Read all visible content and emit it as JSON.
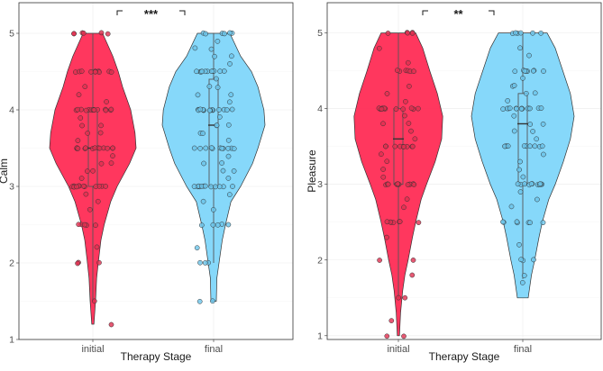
{
  "colors": {
    "initial_fill": "#FF2C55",
    "final_fill": "#7FD6FA",
    "initial_point": "#E03050",
    "final_point": "#6CC4EA",
    "panel_border": "#333333",
    "grid": "#EBEBEB"
  },
  "chart_data": [
    {
      "type": "violin",
      "title": "",
      "xlabel": "Therapy Stage",
      "ylabel": "Calm",
      "categories": [
        "initial",
        "final"
      ],
      "ylim": [
        1,
        5.4
      ],
      "yticks": [
        1,
        2,
        3,
        4,
        5
      ],
      "significance": "***",
      "series": [
        {
          "name": "initial",
          "min": 1.2,
          "q1": 3.0,
          "median": 3.5,
          "q3": 4.0,
          "max": 5.0,
          "whisker_low": 1.5,
          "density": [
            [
              1.2,
              0.02
            ],
            [
              1.5,
              0.05
            ],
            [
              1.8,
              0.07
            ],
            [
              2.0,
              0.1
            ],
            [
              2.3,
              0.15
            ],
            [
              2.5,
              0.21
            ],
            [
              2.8,
              0.33
            ],
            [
              3.0,
              0.45
            ],
            [
              3.3,
              0.68
            ],
            [
              3.5,
              0.8
            ],
            [
              3.7,
              0.78
            ],
            [
              4.0,
              0.7
            ],
            [
              4.3,
              0.55
            ],
            [
              4.5,
              0.47
            ],
            [
              4.7,
              0.37
            ],
            [
              5.0,
              0.18
            ]
          ],
          "points": [
            5,
            5,
            5,
            5,
            5,
            5,
            4.5,
            4.5,
            4.5,
            4.5,
            4.5,
            4.5,
            4.5,
            4.5,
            4.5,
            4.5,
            4.5,
            4.3,
            4.2,
            4.1,
            4,
            4,
            4,
            4,
            4,
            4,
            4,
            4,
            4,
            4,
            4,
            4,
            4,
            4,
            3.9,
            3.8,
            3.8,
            3.7,
            3.7,
            3.6,
            3.5,
            3.5,
            3.5,
            3.5,
            3.5,
            3.5,
            3.5,
            3.5,
            3.5,
            3.5,
            3.5,
            3.5,
            3.5,
            3.4,
            3.3,
            3.3,
            3.2,
            3.2,
            3.1,
            3,
            3,
            3,
            3,
            3,
            3,
            3,
            3,
            3,
            3,
            3,
            3,
            2.9,
            2.8,
            2.7,
            2.5,
            2.5,
            2.5,
            2.5,
            2.5,
            2.2,
            2,
            2,
            2,
            1.5,
            1.2
          ]
        },
        {
          "name": "final",
          "min": 1.5,
          "q1": 3.0,
          "median": 3.8,
          "q3": 4.4,
          "max": 5.0,
          "whisker_low": 2.0,
          "density": [
            [
              1.5,
              0.05
            ],
            [
              1.8,
              0.06
            ],
            [
              2.0,
              0.1
            ],
            [
              2.3,
              0.16
            ],
            [
              2.5,
              0.22
            ],
            [
              2.8,
              0.32
            ],
            [
              3.0,
              0.5
            ],
            [
              3.3,
              0.72
            ],
            [
              3.5,
              0.82
            ],
            [
              3.8,
              0.95
            ],
            [
              4.0,
              0.93
            ],
            [
              4.3,
              0.82
            ],
            [
              4.5,
              0.7
            ],
            [
              4.7,
              0.5
            ],
            [
              5.0,
              0.3
            ]
          ],
          "points": [
            5,
            5,
            5,
            5,
            5,
            5,
            4.9,
            4.8,
            4.8,
            4.7,
            4.7,
            4.6,
            4.5,
            4.5,
            4.5,
            4.5,
            4.5,
            4.5,
            4.5,
            4.5,
            4.5,
            4.5,
            4.5,
            4.4,
            4.3,
            4.3,
            4.2,
            4.2,
            4.1,
            4,
            4,
            4,
            4,
            4,
            4,
            4,
            4,
            4,
            4,
            4,
            4,
            4,
            4,
            3.9,
            3.8,
            3.8,
            3.8,
            3.7,
            3.7,
            3.6,
            3.5,
            3.5,
            3.5,
            3.5,
            3.5,
            3.5,
            3.5,
            3.5,
            3.5,
            3.5,
            3.5,
            3.4,
            3.3,
            3.3,
            3.2,
            3.2,
            3.1,
            3,
            3,
            3,
            3,
            3,
            3,
            3,
            3,
            3,
            3,
            3,
            3,
            2.9,
            2.8,
            2.7,
            2.5,
            2.5,
            2.5,
            2.5,
            2.5,
            2.2,
            2,
            2,
            2,
            1.5,
            1.5
          ]
        }
      ]
    },
    {
      "type": "violin",
      "title": "",
      "xlabel": "Therapy Stage",
      "ylabel": "Pleasure",
      "categories": [
        "initial",
        "final"
      ],
      "ylim": [
        0.95,
        5.4
      ],
      "yticks": [
        1,
        2,
        3,
        4,
        5
      ],
      "significance": "**",
      "series": [
        {
          "name": "initial",
          "min": 1.0,
          "q1": 3.0,
          "median": 3.6,
          "q3": 4.0,
          "max": 5.0,
          "whisker_low": 1.5,
          "density": [
            [
              1.0,
              0.02
            ],
            [
              1.3,
              0.04
            ],
            [
              1.6,
              0.08
            ],
            [
              1.8,
              0.12
            ],
            [
              2.0,
              0.18
            ],
            [
              2.3,
              0.26
            ],
            [
              2.5,
              0.32
            ],
            [
              2.8,
              0.42
            ],
            [
              3.0,
              0.52
            ],
            [
              3.3,
              0.68
            ],
            [
              3.6,
              0.8
            ],
            [
              3.9,
              0.82
            ],
            [
              4.2,
              0.72
            ],
            [
              4.5,
              0.58
            ],
            [
              4.8,
              0.45
            ],
            [
              5.0,
              0.32
            ]
          ],
          "points": [
            5,
            5,
            5,
            5,
            5,
            4.8,
            4.6,
            4.5,
            4.5,
            4.5,
            4.5,
            4.5,
            4.5,
            4.3,
            4.2,
            4.1,
            4,
            4,
            4,
            4,
            4,
            4,
            4,
            4,
            4,
            4,
            4,
            4,
            4,
            3.9,
            3.8,
            3.8,
            3.7,
            3.6,
            3.5,
            3.5,
            3.5,
            3.5,
            3.5,
            3.5,
            3.5,
            3.5,
            3.5,
            3.4,
            3.3,
            3.2,
            3.1,
            3,
            3,
            3,
            3,
            3,
            3,
            3,
            3,
            3,
            3,
            3,
            3,
            2.8,
            2.7,
            2.5,
            2.5,
            2.5,
            2.5,
            2.5,
            2.5,
            2.5,
            2.3,
            2,
            2,
            1.8,
            1.5,
            1.5,
            1.2,
            1,
            1
          ]
        },
        {
          "name": "final",
          "min": 1.5,
          "q1": 3.0,
          "median": 3.8,
          "q3": 4.2,
          "max": 5.0,
          "whisker_low": 1.75,
          "density": [
            [
              1.5,
              0.1
            ],
            [
              1.8,
              0.16
            ],
            [
              2.0,
              0.22
            ],
            [
              2.3,
              0.3
            ],
            [
              2.5,
              0.36
            ],
            [
              2.8,
              0.48
            ],
            [
              3.0,
              0.6
            ],
            [
              3.3,
              0.75
            ],
            [
              3.6,
              0.88
            ],
            [
              3.9,
              0.95
            ],
            [
              4.2,
              0.88
            ],
            [
              4.5,
              0.74
            ],
            [
              4.8,
              0.6
            ],
            [
              5.0,
              0.45
            ]
          ],
          "points": [
            5,
            5,
            5,
            5,
            5,
            5,
            4.8,
            4.7,
            4.5,
            4.5,
            4.5,
            4.5,
            4.5,
            4.5,
            4.5,
            4.5,
            4.4,
            4.3,
            4.3,
            4.2,
            4.2,
            4.1,
            4,
            4,
            4,
            4,
            4,
            4,
            4,
            4,
            4,
            4,
            4,
            4,
            4,
            4,
            3.9,
            3.8,
            3.8,
            3.7,
            3.7,
            3.6,
            3.5,
            3.5,
            3.5,
            3.5,
            3.5,
            3.5,
            3.5,
            3.5,
            3.5,
            3.5,
            3.4,
            3.3,
            3.2,
            3.1,
            3,
            3,
            3,
            3,
            3,
            3,
            3,
            3,
            3,
            3,
            3,
            2.9,
            2.8,
            2.7,
            2.5,
            2.5,
            2.5,
            2.5,
            2.5,
            2.5,
            2.5,
            2.2,
            2,
            2,
            2,
            1.8,
            1.7
          ]
        }
      ]
    }
  ]
}
